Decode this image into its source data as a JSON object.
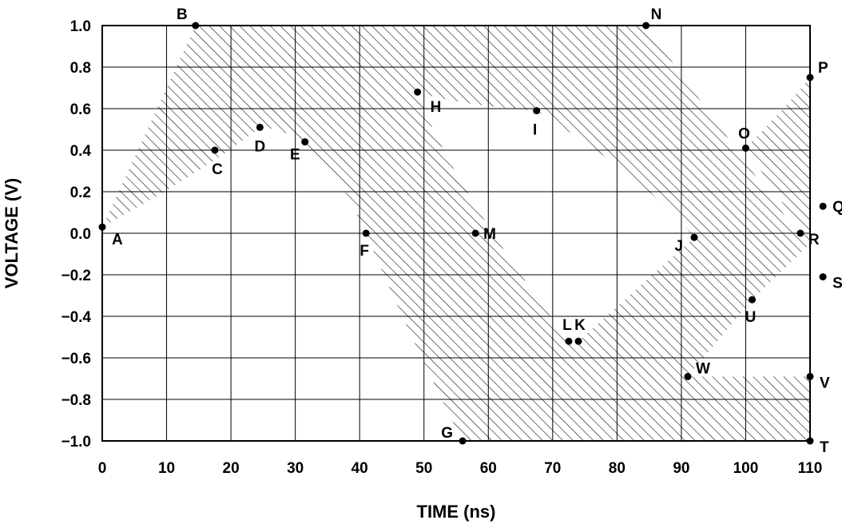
{
  "chart_data": {
    "type": "scatter",
    "xlabel": "TIME (ns)",
    "ylabel": "VOLTAGE (V)",
    "xlim": [
      0,
      110
    ],
    "ylim": [
      -1.0,
      1.0
    ],
    "x_ticks": [
      0,
      10,
      20,
      30,
      40,
      50,
      60,
      70,
      80,
      90,
      100,
      110
    ],
    "y_ticks": [
      1.0,
      0.8,
      0.6,
      0.4,
      0.2,
      0.0,
      -0.2,
      -0.4,
      -0.6,
      -0.8,
      -1.0
    ],
    "x_tick_labels": [
      "0",
      "10",
      "20",
      "30",
      "40",
      "50",
      "60",
      "70",
      "80",
      "90",
      "100",
      "110"
    ],
    "y_tick_labels": [
      "1.0",
      "0.8",
      "0.6",
      "0.4",
      "0.2",
      "0.0",
      "−0.2",
      "−0.4",
      "−0.6",
      "−0.8",
      "−1.0"
    ],
    "grid": true,
    "shading": "hatched",
    "points": [
      {
        "label": "A",
        "x": 0,
        "y": 0.03
      },
      {
        "label": "B",
        "x": 14.5,
        "y": 1.0
      },
      {
        "label": "C",
        "x": 17.5,
        "y": 0.4
      },
      {
        "label": "D",
        "x": 24.5,
        "y": 0.51
      },
      {
        "label": "E",
        "x": 31.5,
        "y": 0.44
      },
      {
        "label": "F",
        "x": 41,
        "y": 0.0
      },
      {
        "label": "G",
        "x": 56,
        "y": -1.0
      },
      {
        "label": "H",
        "x": 49,
        "y": 0.68
      },
      {
        "label": "I",
        "x": 67.5,
        "y": 0.59
      },
      {
        "label": "J",
        "x": 92,
        "y": -0.02
      },
      {
        "label": "K",
        "x": 74,
        "y": -0.52
      },
      {
        "label": "L",
        "x": 72.5,
        "y": -0.52
      },
      {
        "label": "M",
        "x": 58,
        "y": 0.0
      },
      {
        "label": "N",
        "x": 84.5,
        "y": 1.0
      },
      {
        "label": "O",
        "x": 100,
        "y": 0.41
      },
      {
        "label": "P",
        "x": 110,
        "y": 0.75
      },
      {
        "label": "Q",
        "x": 112,
        "y": 0.13
      },
      {
        "label": "R",
        "x": 108.5,
        "y": 0.0
      },
      {
        "label": "S",
        "x": 112,
        "y": -0.21
      },
      {
        "label": "T",
        "x": 110,
        "y": -1.0
      },
      {
        "label": "U",
        "x": 101,
        "y": -0.32
      },
      {
        "label": "V",
        "x": 110,
        "y": -0.69
      },
      {
        "label": "W",
        "x": 91,
        "y": -0.69
      }
    ]
  }
}
